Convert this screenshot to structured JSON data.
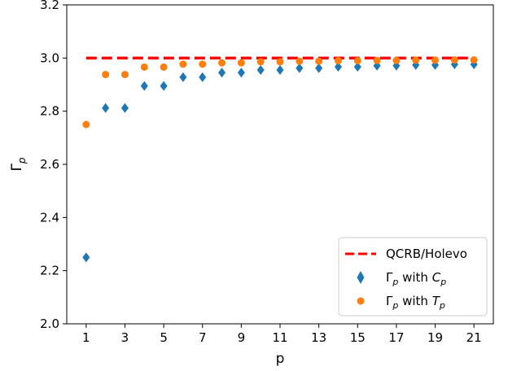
{
  "chart_data": {
    "type": "scatter",
    "title": "",
    "xlabel": "p",
    "ylabel": "Γ",
    "ylabel_sub": "p",
    "xlim": [
      0.0,
      22.0
    ],
    "ylim": [
      2.0,
      3.2
    ],
    "xticks": [
      1,
      3,
      5,
      7,
      9,
      11,
      13,
      15,
      17,
      19,
      21
    ],
    "yticks": [
      2.0,
      2.2,
      2.4,
      2.6,
      2.8,
      3.0,
      3.2
    ],
    "grid": false,
    "legend_position": "lower-right",
    "reference_line": {
      "name": "QCRB/Holevo",
      "x": [
        1,
        21
      ],
      "y": [
        3.0,
        3.0
      ],
      "color": "#ff0000",
      "style": "dashed"
    },
    "series": [
      {
        "name": "Γp with Cp",
        "legend_parts": [
          "Γ",
          "p",
          " with ",
          "C",
          "p"
        ],
        "marker": "diamond",
        "color": "#1f77b4",
        "x": [
          1,
          2,
          3,
          4,
          5,
          6,
          7,
          8,
          9,
          10,
          11,
          12,
          13,
          14,
          15,
          16,
          17,
          18,
          19,
          20,
          21
        ],
        "y": [
          2.25,
          2.812,
          2.812,
          2.895,
          2.895,
          2.928,
          2.928,
          2.945,
          2.945,
          2.955,
          2.955,
          2.962,
          2.962,
          2.967,
          2.967,
          2.971,
          2.971,
          2.974,
          2.974,
          2.976,
          2.976
        ]
      },
      {
        "name": "Γp with Tp",
        "legend_parts": [
          "Γ",
          "p",
          " with ",
          "T",
          "p"
        ],
        "marker": "circle",
        "color": "#ff7f0e",
        "x": [
          1,
          2,
          3,
          4,
          5,
          6,
          7,
          8,
          9,
          10,
          11,
          12,
          13,
          14,
          15,
          16,
          17,
          18,
          19,
          20,
          21
        ],
        "y": [
          2.75,
          2.938,
          2.938,
          2.966,
          2.966,
          2.977,
          2.977,
          2.982,
          2.982,
          2.986,
          2.986,
          2.988,
          2.988,
          2.99,
          2.99,
          2.991,
          2.991,
          2.992,
          2.992,
          2.993,
          2.993
        ]
      }
    ]
  }
}
